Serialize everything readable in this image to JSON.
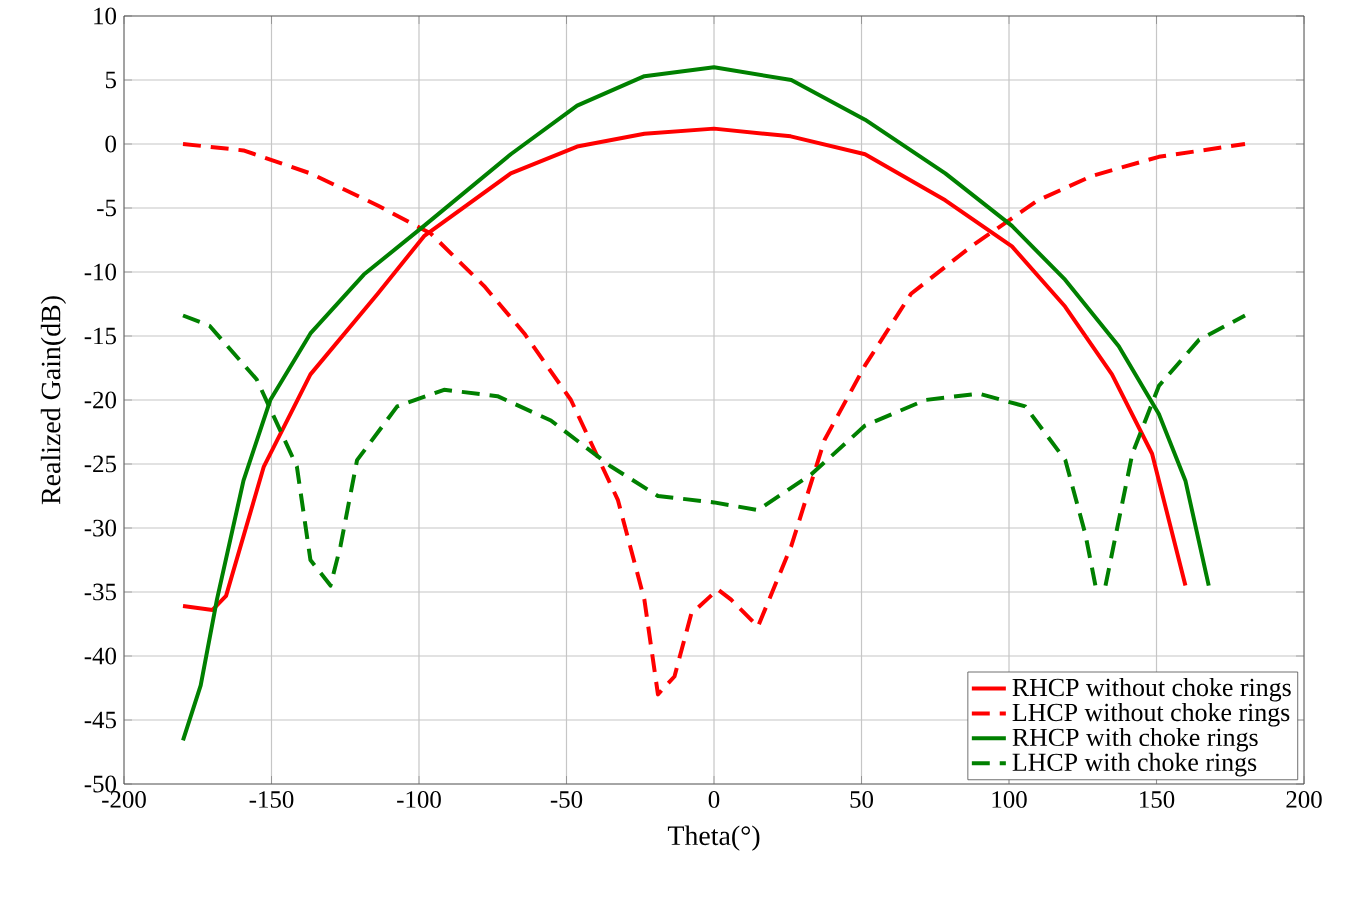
{
  "chart_data": {
    "type": "line",
    "xlabel": "Theta(°)",
    "ylabel": "Realized Gain(dB)",
    "xlim": [
      -200,
      200
    ],
    "ylim": [
      -50,
      10
    ],
    "xticks": [
      -200,
      -150,
      -100,
      -50,
      0,
      50,
      100,
      150,
      200
    ],
    "yticks": [
      -50,
      -45,
      -40,
      -35,
      -30,
      -25,
      -20,
      -15,
      -10,
      -5,
      0,
      5,
      10
    ],
    "grid": true,
    "legend": "bottom right",
    "series": [
      {
        "name": "RHCP without choke rings",
        "color": "#ff0000",
        "line_style": "solid",
        "x": [
          -180,
          -170,
          -165.4,
          -152.6,
          -136.8,
          -114,
          -98.3,
          -68.9,
          -46.4,
          -23.6,
          0,
          26,
          51.2,
          78.4,
          101,
          119,
          134.9,
          148.5,
          159.8
        ],
        "values": [
          -36.1,
          -36.4,
          -35.3,
          -25.2,
          -18,
          -11.7,
          -7.2,
          -2.3,
          -0.2,
          0.8,
          1.2,
          0.6,
          -0.8,
          -4.4,
          -8,
          -12.7,
          -18,
          -24.2,
          -34.5
        ]
      },
      {
        "name": "LHCP without choke rings",
        "color": "#ff0000",
        "line_style": "dashed",
        "x": [
          -180,
          -159.5,
          -136.8,
          -114,
          -96,
          -77.9,
          -64.3,
          -48.5,
          -32.6,
          -23.6,
          -19,
          -13.4,
          -7.7,
          1.3,
          5.8,
          14.9,
          26.2,
          37.5,
          51.2,
          66.8,
          87.2,
          109.8,
          128.1,
          150.8,
          180
        ],
        "values": [
          0,
          -0.5,
          -2.3,
          -4.8,
          -7,
          -11.1,
          -14.8,
          -20,
          -27.8,
          -35.6,
          -43,
          -41.6,
          -36.7,
          -34.8,
          -35.6,
          -37.7,
          -31.4,
          -23.1,
          -17.3,
          -11.7,
          -8,
          -4.4,
          -2.5,
          -1,
          0
        ]
      },
      {
        "name": "RHCP with choke rings",
        "color": "#008000",
        "line_style": "solid",
        "x": [
          -180,
          -174,
          -168.5,
          -159.5,
          -150.4,
          -136.8,
          -118.7,
          -98.3,
          -68.9,
          -46.4,
          -23.6,
          0,
          26.2,
          51.2,
          78.4,
          101,
          119,
          137.2,
          150.8,
          159.8,
          167.7
        ],
        "values": [
          -46.6,
          -42.3,
          -35.6,
          -26.3,
          -20,
          -14.8,
          -10.2,
          -6.4,
          -0.8,
          3,
          5.3,
          6,
          5,
          1.9,
          -2.3,
          -6.4,
          -10.6,
          -15.8,
          -21.1,
          -26.3,
          -34.5
        ]
      },
      {
        "name": "LHCP with choke rings",
        "color": "#008000",
        "line_style": "dashed",
        "x": [
          -180,
          -171,
          -155,
          -141.4,
          -136.8,
          -130,
          -126.6,
          -121,
          -107.4,
          -91.5,
          -73.4,
          -55.3,
          -34.9,
          -19,
          0,
          14.9,
          33,
          51.2,
          71.6,
          89.7,
          105.5,
          119.1,
          125.9,
          129.3,
          131,
          132.7,
          141.8,
          150.8,
          164.4,
          180
        ],
        "values": [
          -13.4,
          -14.2,
          -18.4,
          -25.2,
          -32.5,
          -34.5,
          -31.4,
          -24.7,
          -20.5,
          -19.2,
          -19.7,
          -21.6,
          -25.2,
          -27.5,
          -28,
          -28.6,
          -25.8,
          -22,
          -20,
          -19.5,
          -20.5,
          -24.7,
          -30.5,
          -34.5,
          null,
          -34.5,
          -24.2,
          -18.9,
          -15.3,
          -13.4
        ]
      }
    ]
  }
}
